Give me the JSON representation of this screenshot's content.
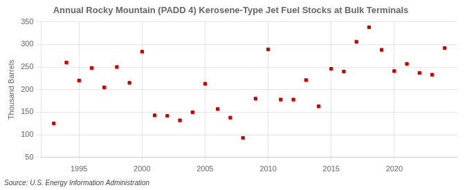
{
  "chart_data": {
    "type": "scatter",
    "title": "Annual Rocky Mountain (PADD 4) Kerosene-Type Jet Fuel Stocks at Bulk Terminals",
    "ylabel": "Thousand Barrels",
    "annotations": [
      "Source: U.S. Energy Information Administration"
    ],
    "x": [
      1993,
      1994,
      1995,
      1996,
      1997,
      1998,
      1999,
      2000,
      2001,
      2002,
      2003,
      2004,
      2005,
      2006,
      2007,
      2008,
      2009,
      2010,
      2011,
      2012,
      2013,
      2014,
      2015,
      2016,
      2017,
      2018,
      2019,
      2020,
      2021,
      2022,
      2023,
      2024
    ],
    "values": [
      125,
      260,
      220,
      248,
      205,
      250,
      215,
      284,
      143,
      142,
      132,
      150,
      213,
      157,
      138,
      93,
      180,
      289,
      178,
      178,
      221,
      163,
      246,
      240,
      306,
      338,
      288,
      241,
      257,
      237,
      233,
      292
    ],
    "color": "#cc0000",
    "marker": "square",
    "xlim": [
      1992,
      2025
    ],
    "xticks": [
      1995,
      2000,
      2005,
      2010,
      2015,
      2020
    ],
    "ylim": [
      50,
      350
    ],
    "yticks": [
      50,
      100,
      150,
      200,
      250,
      300,
      350
    ],
    "grid": true
  }
}
